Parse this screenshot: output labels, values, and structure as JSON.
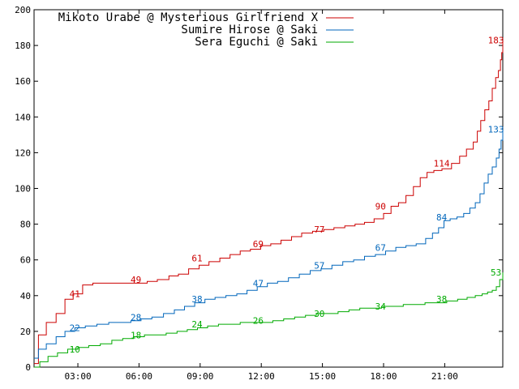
{
  "chart_data": {
    "type": "line",
    "title": "",
    "xlabel": "",
    "ylabel": "",
    "xlim": [
      "00:51",
      "23:51"
    ],
    "ylim": [
      0,
      200
    ],
    "x_ticks": [
      "03:00",
      "06:00",
      "09:00",
      "12:00",
      "15:00",
      "18:00",
      "21:00"
    ],
    "y_ticks": [
      0,
      20,
      40,
      60,
      80,
      100,
      120,
      140,
      160,
      180,
      200
    ],
    "grid": false,
    "legend_placement": "top-right",
    "series": [
      {
        "name": "Mikoto Urabe @ Mysterious Girlfriend X",
        "color": "#cc0000",
        "x": [
          "00:51",
          "01:04",
          "01:27",
          "01:56",
          "02:22",
          "02:46",
          "03:14",
          "03:44",
          "04:18",
          "04:51",
          "05:24",
          "05:55",
          "06:24",
          "06:54",
          "07:28",
          "07:56",
          "08:26",
          "08:57",
          "09:26",
          "09:58",
          "10:28",
          "10:58",
          "11:28",
          "11:58",
          "12:28",
          "12:58",
          "13:29",
          "13:59",
          "14:31",
          "15:04",
          "15:34",
          "16:06",
          "16:36",
          "17:04",
          "17:32",
          "18:00",
          "18:22",
          "18:44",
          "19:06",
          "19:28",
          "19:48",
          "20:08",
          "20:28",
          "20:52",
          "21:20",
          "21:44",
          "22:04",
          "22:24",
          "22:36",
          "22:46",
          "22:58",
          "23:10",
          "23:20",
          "23:30",
          "23:38",
          "23:44",
          "23:48",
          "23:51"
        ],
        "y": [
          2,
          18,
          25,
          30,
          38,
          41,
          46,
          47,
          47,
          47,
          47,
          47,
          48,
          49,
          51,
          52,
          55,
          57,
          59,
          61,
          63,
          65,
          66,
          68,
          69,
          71,
          73,
          75,
          76,
          77,
          78,
          79,
          80,
          81,
          83,
          86,
          90,
          92,
          96,
          101,
          106,
          109,
          110,
          111,
          114,
          118,
          122,
          126,
          132,
          138,
          144,
          149,
          156,
          162,
          166,
          172,
          176,
          183
        ],
        "labels": [
          {
            "x": "02:51",
            "y": 41,
            "text": "41"
          },
          {
            "x": "05:51",
            "y": 49,
            "text": "49"
          },
          {
            "x": "08:51",
            "y": 61,
            "text": "61"
          },
          {
            "x": "11:51",
            "y": 69,
            "text": "69"
          },
          {
            "x": "14:51",
            "y": 77,
            "text": "77"
          },
          {
            "x": "17:51",
            "y": 90,
            "text": "90"
          },
          {
            "x": "20:51",
            "y": 114,
            "text": "114"
          },
          {
            "x": "23:31",
            "y": 183,
            "text": "183"
          }
        ]
      },
      {
        "name": "Sumire Hirose @ Saki",
        "color": "#0066bb",
        "x": [
          "00:51",
          "01:04",
          "01:27",
          "01:56",
          "02:22",
          "02:51",
          "03:22",
          "03:56",
          "04:31",
          "05:04",
          "05:36",
          "06:06",
          "06:38",
          "07:12",
          "07:44",
          "08:14",
          "08:44",
          "09:14",
          "09:44",
          "10:16",
          "10:48",
          "11:18",
          "11:48",
          "12:18",
          "12:48",
          "13:20",
          "13:52",
          "14:24",
          "14:56",
          "15:28",
          "16:00",
          "16:32",
          "17:04",
          "17:36",
          "18:06",
          "18:36",
          "19:06",
          "19:36",
          "20:04",
          "20:24",
          "20:42",
          "20:58",
          "21:16",
          "21:36",
          "21:56",
          "22:14",
          "22:30",
          "22:44",
          "22:56",
          "23:08",
          "23:20",
          "23:32",
          "23:40",
          "23:46",
          "23:51"
        ],
        "y": [
          5,
          10,
          13,
          17,
          20,
          22,
          23,
          24,
          25,
          25,
          26,
          27,
          28,
          30,
          32,
          34,
          36,
          38,
          39,
          40,
          41,
          43,
          45,
          47,
          48,
          50,
          52,
          54,
          55,
          57,
          59,
          60,
          62,
          63,
          65,
          67,
          68,
          69,
          72,
          75,
          78,
          82,
          83,
          84,
          86,
          89,
          92,
          97,
          103,
          108,
          112,
          117,
          122,
          127,
          133
        ],
        "labels": [
          {
            "x": "02:51",
            "y": 22,
            "text": "22"
          },
          {
            "x": "05:51",
            "y": 28,
            "text": "28"
          },
          {
            "x": "08:51",
            "y": 38,
            "text": "38"
          },
          {
            "x": "11:51",
            "y": 47,
            "text": "47"
          },
          {
            "x": "14:51",
            "y": 57,
            "text": "57"
          },
          {
            "x": "17:51",
            "y": 67,
            "text": "67"
          },
          {
            "x": "20:51",
            "y": 84,
            "text": "84"
          },
          {
            "x": "23:31",
            "y": 133,
            "text": "133"
          }
        ]
      },
      {
        "name": "Sera Eguchi @ Saki",
        "color": "#00aa00",
        "x": [
          "00:51",
          "01:08",
          "01:32",
          "02:00",
          "02:30",
          "03:00",
          "03:32",
          "04:06",
          "04:40",
          "05:12",
          "05:44",
          "06:16",
          "06:48",
          "07:20",
          "07:52",
          "08:22",
          "08:52",
          "09:22",
          "09:54",
          "10:26",
          "10:58",
          "11:30",
          "12:02",
          "12:34",
          "13:06",
          "13:38",
          "14:10",
          "14:42",
          "15:14",
          "15:46",
          "16:18",
          "16:50",
          "17:22",
          "17:54",
          "18:26",
          "18:58",
          "19:30",
          "20:02",
          "20:34",
          "21:06",
          "21:38",
          "22:06",
          "22:30",
          "22:50",
          "23:06",
          "23:20",
          "23:32",
          "23:42",
          "23:51"
        ],
        "y": [
          0,
          3,
          6,
          8,
          10,
          11,
          12,
          13,
          15,
          16,
          17,
          18,
          18,
          19,
          20,
          21,
          22,
          23,
          24,
          24,
          25,
          25,
          25,
          26,
          27,
          28,
          29,
          30,
          30,
          31,
          32,
          33,
          33,
          34,
          34,
          35,
          35,
          36,
          36,
          37,
          38,
          39,
          40,
          41,
          42,
          43,
          45,
          49,
          53
        ],
        "labels": [
          {
            "x": "02:51",
            "y": 10,
            "text": "10"
          },
          {
            "x": "05:51",
            "y": 18,
            "text": "18"
          },
          {
            "x": "08:51",
            "y": 24,
            "text": "24"
          },
          {
            "x": "11:51",
            "y": 26,
            "text": "26"
          },
          {
            "x": "14:51",
            "y": 30,
            "text": "30"
          },
          {
            "x": "17:51",
            "y": 34,
            "text": "34"
          },
          {
            "x": "20:51",
            "y": 38,
            "text": "38"
          },
          {
            "x": "23:31",
            "y": 53,
            "text": "53"
          }
        ]
      }
    ]
  }
}
